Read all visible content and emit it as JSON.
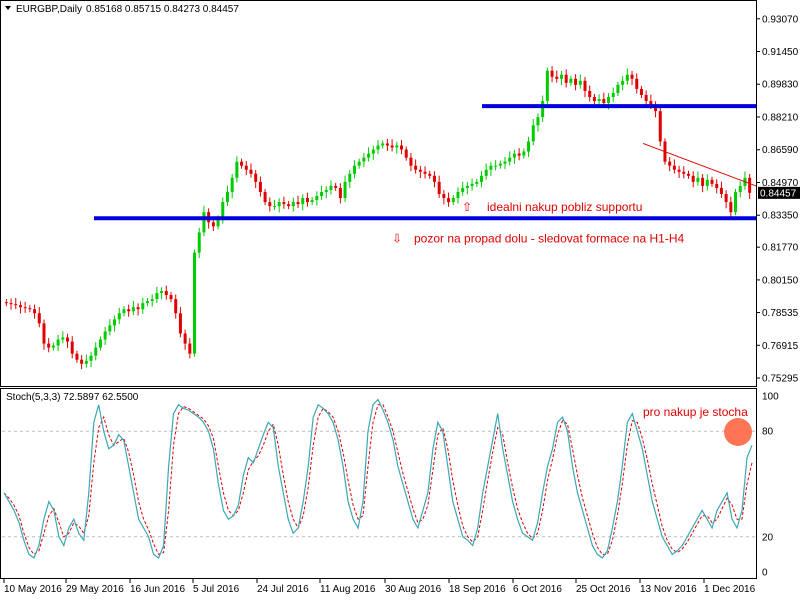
{
  "chart_data": [
    {
      "type": "candlestick",
      "symbol_header": "EURGBP,Daily",
      "ohlc_header": "0.85168 0.85715 0.84273 0.84457",
      "current_price": "0.84457",
      "colors": {
        "up": "#00cc00",
        "down": "#e00000",
        "support": "#0000dd",
        "trendline": "#e00000",
        "price_tag": "#000000"
      },
      "ylim": [
        0.75,
        0.938
      ],
      "y_ticks": [
        "0.93070",
        "0.91450",
        "0.89830",
        "0.88210",
        "0.86590",
        "0.84970",
        "0.83350",
        "0.81770",
        "0.80150",
        "0.78535",
        "0.76915",
        "0.75295"
      ],
      "x_ticks": [
        "10 May 2016",
        "29 May 2016",
        "16 Jun 2016",
        "5 Jul 2016",
        "24 Jul 2016",
        "11 Aug 2016",
        "30 Aug 2016",
        "18 Sep 2016",
        "6 Oct 2016",
        "25 Oct 2016",
        "13 Nov 2016",
        "1 Dec 2016"
      ],
      "support_lines": [
        {
          "price": 0.8875
        },
        {
          "price": 0.832
        }
      ],
      "trendline": {
        "from_price": 0.869,
        "to_price": 0.848
      },
      "annotations": [
        {
          "arrow": "⇧",
          "text": "idealni nakup pobliz supportu",
          "price": 0.8375
        },
        {
          "arrow": "⇩",
          "text": "pozor na propad dolu - sledovat formace na H1-H4",
          "price": 0.822
        }
      ],
      "closes": [
        0.79,
        0.7895,
        0.789,
        0.788,
        0.7875,
        0.787,
        0.785,
        0.78,
        0.77,
        0.768,
        0.769,
        0.772,
        0.773,
        0.771,
        0.765,
        0.762,
        0.76,
        0.7615,
        0.764,
        0.768,
        0.772,
        0.776,
        0.779,
        0.782,
        0.785,
        0.787,
        0.786,
        0.788,
        0.787,
        0.79,
        0.791,
        0.792,
        0.795,
        0.796,
        0.794,
        0.792,
        0.785,
        0.775,
        0.77,
        0.765,
        0.815,
        0.825,
        0.835,
        0.83,
        0.828,
        0.832,
        0.84,
        0.845,
        0.852,
        0.86,
        0.858,
        0.856,
        0.854,
        0.85,
        0.845,
        0.84,
        0.838,
        0.838,
        0.84,
        0.839,
        0.838,
        0.84,
        0.839,
        0.842,
        0.84,
        0.841,
        0.843,
        0.845,
        0.846,
        0.848,
        0.847,
        0.842,
        0.85,
        0.854,
        0.858,
        0.86,
        0.862,
        0.864,
        0.866,
        0.868,
        0.869,
        0.868,
        0.867,
        0.868,
        0.866,
        0.862,
        0.858,
        0.856,
        0.855,
        0.854,
        0.853,
        0.85,
        0.844,
        0.842,
        0.84,
        0.842,
        0.845,
        0.847,
        0.848,
        0.849,
        0.85,
        0.853,
        0.856,
        0.858,
        0.858,
        0.859,
        0.86,
        0.862,
        0.864,
        0.863,
        0.865,
        0.87,
        0.878,
        0.882,
        0.89,
        0.905,
        0.902,
        0.901,
        0.903,
        0.899,
        0.901,
        0.898,
        0.9,
        0.895,
        0.892,
        0.89,
        0.891,
        0.889,
        0.892,
        0.894,
        0.898,
        0.9,
        0.903,
        0.901,
        0.896,
        0.893,
        0.89,
        0.888,
        0.885,
        0.87,
        0.86,
        0.858,
        0.856,
        0.855,
        0.854,
        0.853,
        0.85,
        0.852,
        0.848,
        0.851,
        0.849,
        0.847,
        0.844,
        0.84,
        0.835,
        0.845,
        0.848,
        0.852,
        0.8446
      ],
      "stochastic": {
        "header": "Stoch(5,3,3) 72.5897 62.5500",
        "ylim": [
          0,
          100
        ],
        "levels": [
          80,
          20
        ],
        "y_ticks": [
          "100",
          "80",
          "20",
          "0"
        ],
        "colors": {
          "main": "#3aa8b8",
          "signal": "#e00000",
          "level": "#bbbbbb"
        },
        "main": [
          45,
          40,
          35,
          28,
          18,
          10,
          8,
          15,
          30,
          40,
          35,
          20,
          15,
          25,
          30,
          22,
          18,
          45,
          85,
          95,
          80,
          70,
          72,
          78,
          75,
          60,
          45,
          30,
          25,
          20,
          10,
          8,
          15,
          60,
          90,
          95,
          93,
          92,
          90,
          88,
          85,
          80,
          70,
          50,
          35,
          30,
          32,
          38,
          55,
          65,
          62,
          70,
          78,
          85,
          82,
          60,
          45,
          30,
          22,
          25,
          40,
          60,
          88,
          95,
          93,
          90,
          85,
          75,
          60,
          40,
          30,
          25,
          40,
          80,
          95,
          98,
          92,
          85,
          75,
          60,
          50,
          40,
          30,
          25,
          35,
          45,
          70,
          85,
          80,
          60,
          40,
          30,
          20,
          18,
          15,
          25,
          45,
          60,
          75,
          90,
          70,
          55,
          40,
          30,
          22,
          20,
          18,
          28,
          45,
          60,
          70,
          85,
          88,
          80,
          60,
          45,
          35,
          25,
          15,
          10,
          8,
          12,
          25,
          40,
          60,
          85,
          90,
          80,
          70,
          55,
          40,
          30,
          20,
          15,
          10,
          12,
          15,
          20,
          25,
          30,
          35,
          30,
          25,
          35,
          40,
          45,
          30,
          25,
          35,
          65,
          72
        ],
        "signal": [
          45,
          42,
          38,
          32,
          22,
          14,
          10,
          12,
          22,
          32,
          36,
          28,
          20,
          22,
          28,
          26,
          22,
          32,
          62,
          82,
          88,
          78,
          72,
          74,
          76,
          68,
          55,
          40,
          30,
          24,
          16,
          10,
          11,
          35,
          72,
          90,
          94,
          93,
          91,
          89,
          87,
          83,
          76,
          60,
          45,
          35,
          32,
          35,
          45,
          58,
          63,
          66,
          72,
          80,
          84,
          72,
          55,
          40,
          30,
          25,
          32,
          48,
          72,
          88,
          93,
          91,
          88,
          80,
          68,
          52,
          38,
          30,
          32,
          60,
          85,
          95,
          95,
          88,
          80,
          68,
          56,
          46,
          36,
          28,
          30,
          38,
          58,
          78,
          82,
          70,
          52,
          38,
          26,
          20,
          17,
          20,
          35,
          52,
          68,
          82,
          78,
          62,
          48,
          36,
          28,
          22,
          19,
          22,
          35,
          52,
          64,
          78,
          86,
          84,
          70,
          55,
          42,
          32,
          22,
          14,
          10,
          10,
          18,
          32,
          50,
          72,
          86,
          85,
          76,
          64,
          50,
          38,
          26,
          18,
          13,
          11,
          13,
          17,
          22,
          27,
          32,
          32,
          28,
          30,
          36,
          42,
          38,
          30,
          30,
          50,
          62
        ]
      }
    }
  ]
}
